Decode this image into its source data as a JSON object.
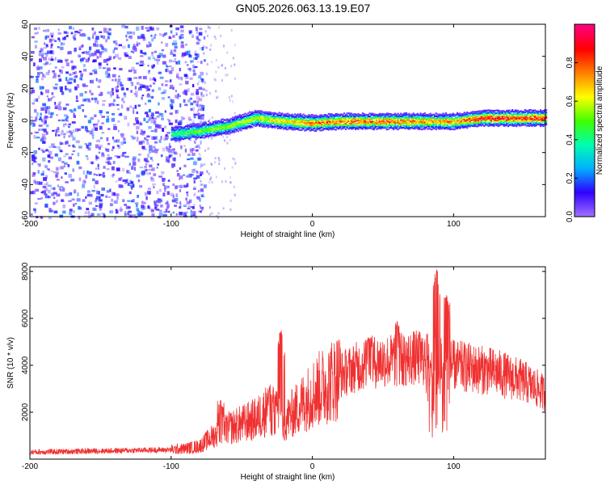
{
  "title": "GN05.2026.063.13.19.E07",
  "chart_data": [
    {
      "type": "heatmap",
      "panel": "spectrogram",
      "xlabel": "Height of straight line (km)",
      "ylabel": "Frequency (Hz)",
      "xlim": [
        -200,
        165
      ],
      "ylim": [
        -60,
        60
      ],
      "x_ticks": [
        -200,
        -100,
        0,
        100
      ],
      "y_ticks": [
        -60,
        -40,
        -20,
        0,
        20,
        40,
        60
      ],
      "colorbar": {
        "label": "Normalized spectral amplitude",
        "range": [
          0.0,
          1.0
        ],
        "ticks": [
          0.0,
          0.2,
          0.4,
          0.6,
          0.8
        ],
        "colormap": [
          "#a070ff",
          "#3000ff",
          "#00b0ff",
          "#00ffb0",
          "#40ff00",
          "#ffff00",
          "#ff8000",
          "#ff0000",
          "#ff0080"
        ]
      },
      "ridge": [
        {
          "x": -100,
          "freq": -8,
          "amp": 0.45
        },
        {
          "x": -80,
          "freq": -6,
          "amp": 0.55
        },
        {
          "x": -60,
          "freq": -3,
          "amp": 0.6
        },
        {
          "x": -40,
          "freq": 2,
          "amp": 0.65
        },
        {
          "x": -20,
          "freq": 0,
          "amp": 0.7
        },
        {
          "x": 0,
          "freq": -1,
          "amp": 0.85
        },
        {
          "x": 20,
          "freq": 0,
          "amp": 0.85
        },
        {
          "x": 40,
          "freq": 0,
          "amp": 0.85
        },
        {
          "x": 60,
          "freq": 0,
          "amp": 0.85
        },
        {
          "x": 80,
          "freq": 0,
          "amp": 0.8
        },
        {
          "x": 100,
          "freq": 0,
          "amp": 0.8
        },
        {
          "x": 120,
          "freq": 2,
          "amp": 0.95
        },
        {
          "x": 165,
          "freq": 2,
          "amp": 0.95
        }
      ],
      "noise_region": [
        -200,
        -85
      ]
    },
    {
      "type": "line",
      "panel": "snr",
      "xlabel": "Height of straight line (km)",
      "ylabel": "SNR (10 * v/v)",
      "xlim": [
        -200,
        165
      ],
      "ylim": [
        0,
        8200
      ],
      "x_ticks": [
        -200,
        -100,
        0,
        100
      ],
      "y_ticks": [
        2000,
        4000,
        6000,
        8000
      ],
      "color": "#f03030",
      "series": [
        {
          "name": "SNR",
          "x": [
            -200,
            -180,
            -160,
            -140,
            -120,
            -100,
            -90,
            -80,
            -70,
            -60,
            -50,
            -40,
            -30,
            -20,
            -10,
            0,
            10,
            20,
            30,
            40,
            50,
            60,
            70,
            80,
            90,
            100,
            110,
            120,
            130,
            140,
            150,
            165
          ],
          "values": [
            300,
            320,
            340,
            360,
            380,
            400,
            450,
            550,
            1000,
            1300,
            1500,
            1700,
            2200,
            1600,
            2200,
            2800,
            3200,
            3600,
            3900,
            4100,
            4200,
            4200,
            4300,
            4300,
            4200,
            4000,
            3900,
            3800,
            3700,
            3500,
            3300,
            2800
          ]
        }
      ],
      "spikes": [
        {
          "x": -65,
          "y": 2500
        },
        {
          "x": -30,
          "y": 3200
        },
        {
          "x": -22,
          "y": 5500
        },
        {
          "x": 40,
          "y": 5200
        },
        {
          "x": 60,
          "y": 5900
        },
        {
          "x": 88,
          "y": 8100
        },
        {
          "x": 95,
          "y": 7000
        }
      ]
    }
  ]
}
